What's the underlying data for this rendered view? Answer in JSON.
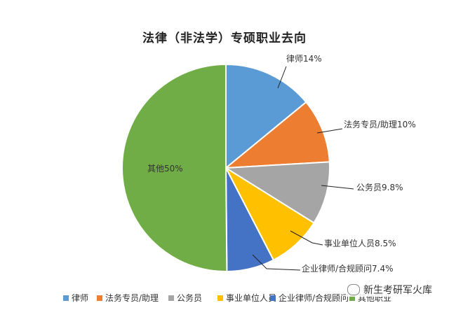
{
  "chart_data": {
    "type": "pie",
    "title": "法律（非法学）专硕职业去向",
    "categories": [
      "律师",
      "法务专员/助理",
      "公务员",
      "事业单位人员",
      "企业律师/合规顾问",
      "其他"
    ],
    "values": [
      14,
      10,
      9.8,
      8.5,
      7.4,
      50
    ],
    "data_labels": [
      "律师14%",
      "法务专员/助理10%",
      "公务员9.8%",
      "事业单位人员8.5%",
      "企业律师/合规顾问7.4%",
      "其他50%"
    ],
    "colors": [
      "#5b9bd5",
      "#ed7d31",
      "#a5a5a5",
      "#ffc000",
      "#4472c4",
      "#70ad47"
    ],
    "legend": [
      "律师",
      "法务专员/助理",
      "公务员",
      "事业单位人员",
      "企业律师/合规顾问",
      "其他职业"
    ],
    "legend_position": "bottom"
  },
  "watermark": {
    "text": "新生考研军火库",
    "icon": "wechat-icon"
  }
}
